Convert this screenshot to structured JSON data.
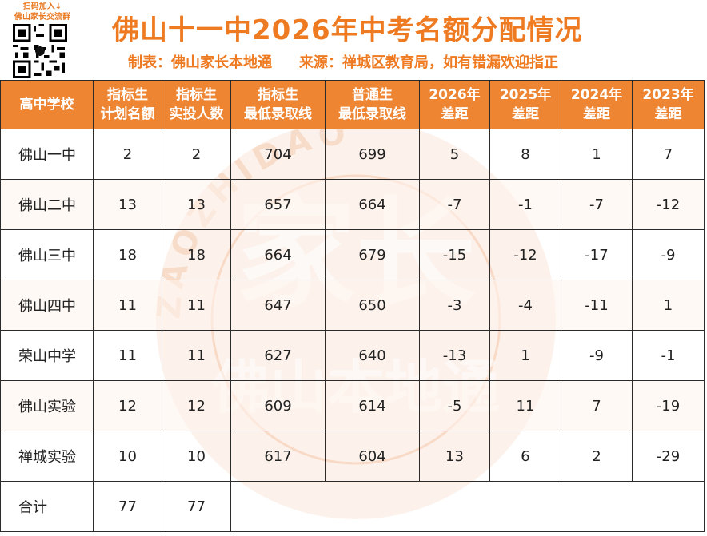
{
  "header": {
    "qr_label_line1": "扫码加入↓",
    "qr_label_line2": "佛山家长交流群",
    "title": "佛山十一中2026年中考名额分配情况",
    "made_by": "制表：佛山家长本地通",
    "source": "来源：禅城区教育局，如有错漏欢迎指正"
  },
  "watermark": {
    "big_text": "家长",
    "arc_text": "佛山本地通",
    "ring_text": "ZAOZHIDAO"
  },
  "colors": {
    "accent": "#ee7b22",
    "header_bg": "#ee8532",
    "watermark": "#f6c9ad"
  },
  "table": {
    "columns": [
      [
        "高中学校",
        ""
      ],
      [
        "指标生",
        "计划名额"
      ],
      [
        "指标生",
        "实投人数"
      ],
      [
        "指标生",
        "最低录取线"
      ],
      [
        "普通生",
        "最低录取线"
      ],
      [
        "2026年",
        "差距"
      ],
      [
        "2025年",
        "差距"
      ],
      [
        "2024年",
        "差距"
      ],
      [
        "2023年",
        "差距"
      ]
    ],
    "rows": [
      [
        "佛山一中",
        "2",
        "2",
        "704",
        "699",
        "5",
        "8",
        "1",
        "7"
      ],
      [
        "佛山二中",
        "13",
        "13",
        "657",
        "664",
        "-7",
        "-1",
        "-7",
        "-12"
      ],
      [
        "佛山三中",
        "18",
        "18",
        "664",
        "679",
        "-15",
        "-12",
        "-17",
        "-9"
      ],
      [
        "佛山四中",
        "11",
        "11",
        "647",
        "650",
        "-3",
        "-4",
        "-11",
        "1"
      ],
      [
        "荣山中学",
        "11",
        "11",
        "627",
        "640",
        "-13",
        "1",
        "-9",
        "-1"
      ],
      [
        "佛山实验",
        "12",
        "12",
        "609",
        "614",
        "-5",
        "11",
        "7",
        "-19"
      ],
      [
        "禅城实验",
        "10",
        "10",
        "617",
        "604",
        "13",
        "6",
        "2",
        "-29"
      ]
    ],
    "total": [
      "合计",
      "77",
      "77"
    ]
  }
}
